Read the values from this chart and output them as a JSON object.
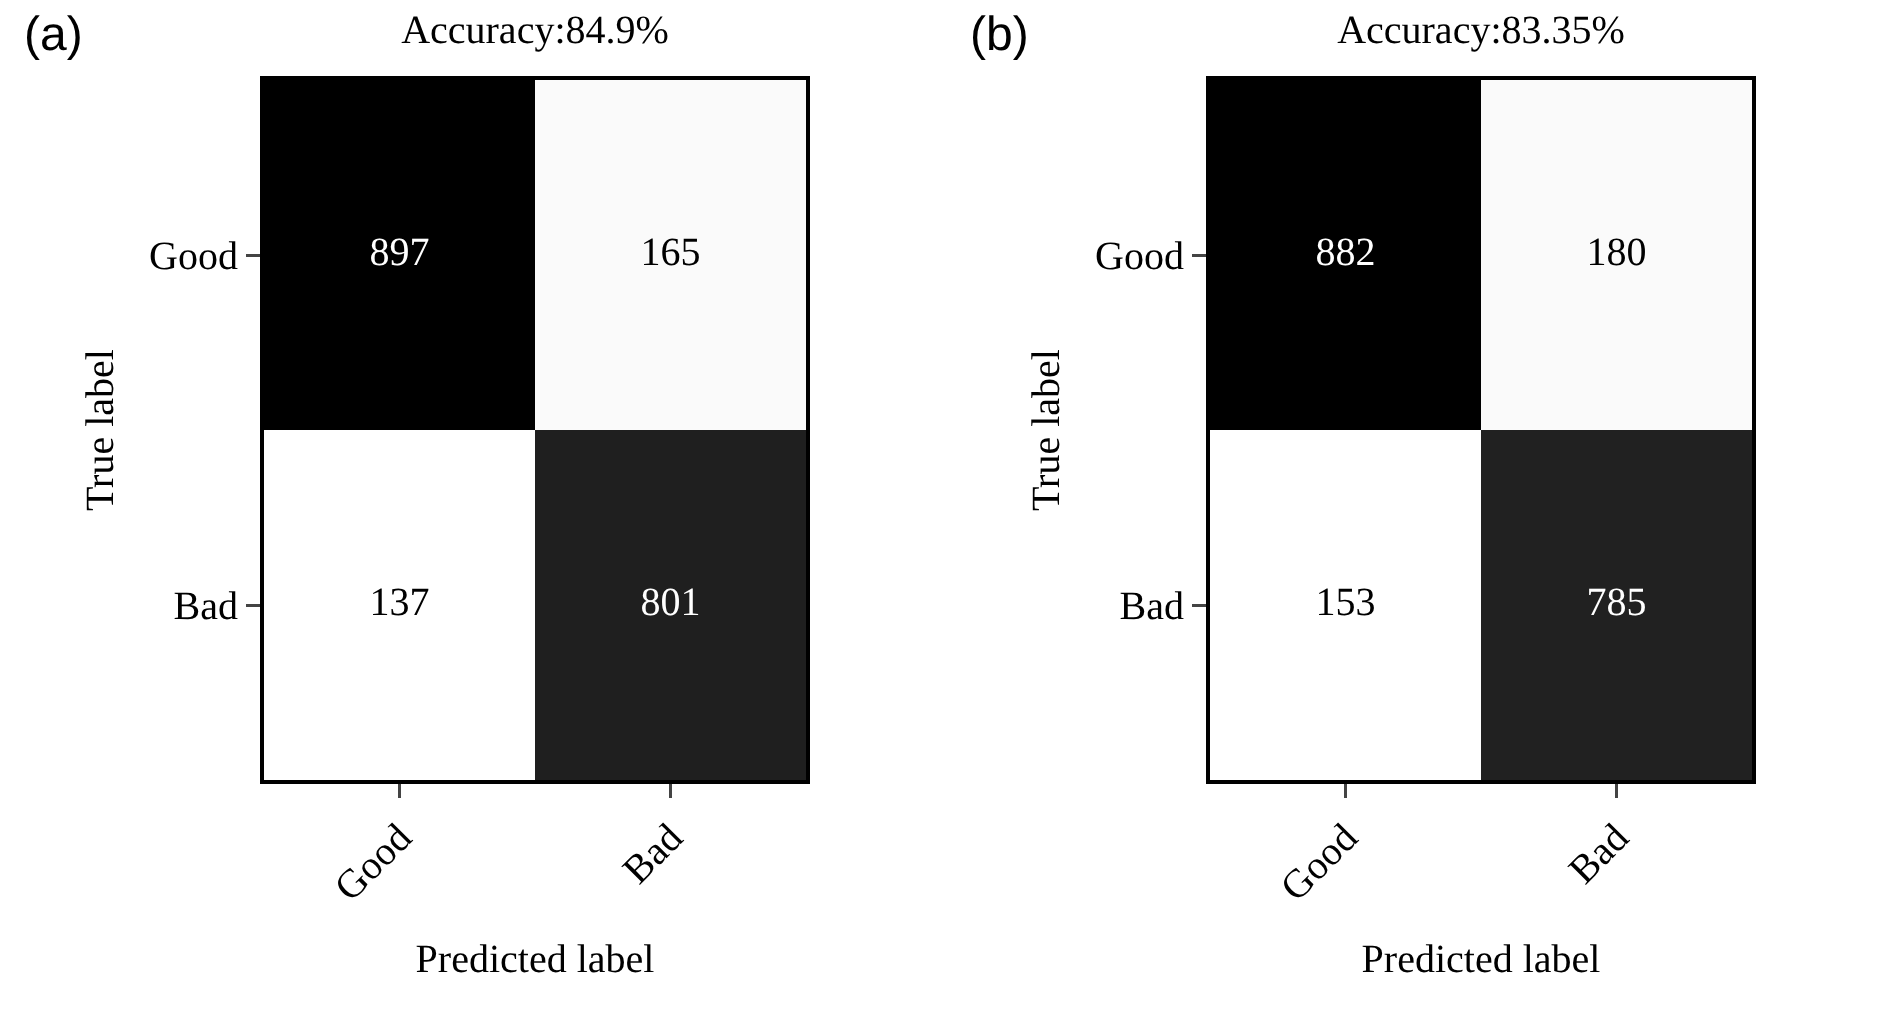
{
  "chart_data": [
    {
      "type": "heatmap",
      "title": "Accuracy:84.9%",
      "xlabel": "Predicted label",
      "ylabel": "True label",
      "annotations": [
        "(a)"
      ],
      "categories": [
        "Good",
        "Bad"
      ],
      "y_categories": [
        "Good",
        "Bad"
      ],
      "cells": [
        [
          897,
          165
        ],
        [
          137,
          801
        ]
      ],
      "data_labels": true
    },
    {
      "type": "heatmap",
      "title": "Accuracy:83.35%",
      "xlabel": "Predicted label",
      "ylabel": "True label",
      "annotations": [
        "(b)"
      ],
      "categories": [
        "Good",
        "Bad"
      ],
      "y_categories": [
        "Good",
        "Bad"
      ],
      "cells": [
        [
          882,
          180
        ],
        [
          153,
          785
        ]
      ],
      "data_labels": true
    }
  ]
}
